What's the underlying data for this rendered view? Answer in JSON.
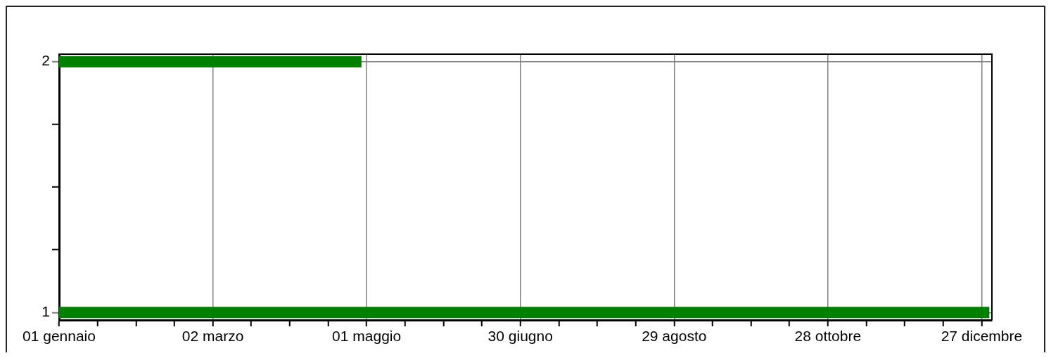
{
  "chart_data": {
    "type": "line",
    "marker": "none",
    "series": [
      {
        "color": "#008000",
        "x": [
          "--01-01",
          "--04-29"
        ],
        "values": [
          2,
          2
        ]
      },
      {
        "color": "#008000",
        "x": [
          "--01-01",
          "--12-30"
        ],
        "values": [
          1,
          1
        ]
      }
    ],
    "xlim": [
      "--01-01",
      "--12-31"
    ],
    "xticks": [
      {
        "value": "--01-01",
        "label": "01 gennaio"
      },
      {
        "value": "--01-16",
        "label": null
      },
      {
        "value": "--01-31",
        "label": null
      },
      {
        "value": "--02-15",
        "label": null
      },
      {
        "value": "--03-02",
        "label": "02 marzo"
      },
      {
        "value": "--03-17",
        "label": null
      },
      {
        "value": "--04-01",
        "label": null
      },
      {
        "value": "--04-16",
        "label": null
      },
      {
        "value": "--05-01",
        "label": "01 maggio"
      },
      {
        "value": "--05-16",
        "label": null
      },
      {
        "value": "--05-31",
        "label": null
      },
      {
        "value": "--06-15",
        "label": null
      },
      {
        "value": "--06-30",
        "label": "30 giugno"
      },
      {
        "value": "--07-15",
        "label": null
      },
      {
        "value": "--07-30",
        "label": null
      },
      {
        "value": "--08-14",
        "label": null
      },
      {
        "value": "--08-29",
        "label": "29 agosto"
      },
      {
        "value": "--09-13",
        "label": null
      },
      {
        "value": "--09-28",
        "label": null
      },
      {
        "value": "--10-13",
        "label": null
      },
      {
        "value": "--10-28",
        "label": "28 ottobre"
      },
      {
        "value": "--11-12",
        "label": null
      },
      {
        "value": "--11-27",
        "label": null
      },
      {
        "value": "--12-12",
        "label": null
      },
      {
        "value": "--12-27",
        "label": "27 dicembre"
      }
    ],
    "ylim": [
      0.97,
      2.03
    ],
    "yticks": [
      1,
      {
        "value": 1.25,
        "label": null
      },
      {
        "value": 1.5,
        "label": null
      },
      {
        "value": 1.75,
        "label": null
      },
      2
    ],
    "grid": true
  }
}
